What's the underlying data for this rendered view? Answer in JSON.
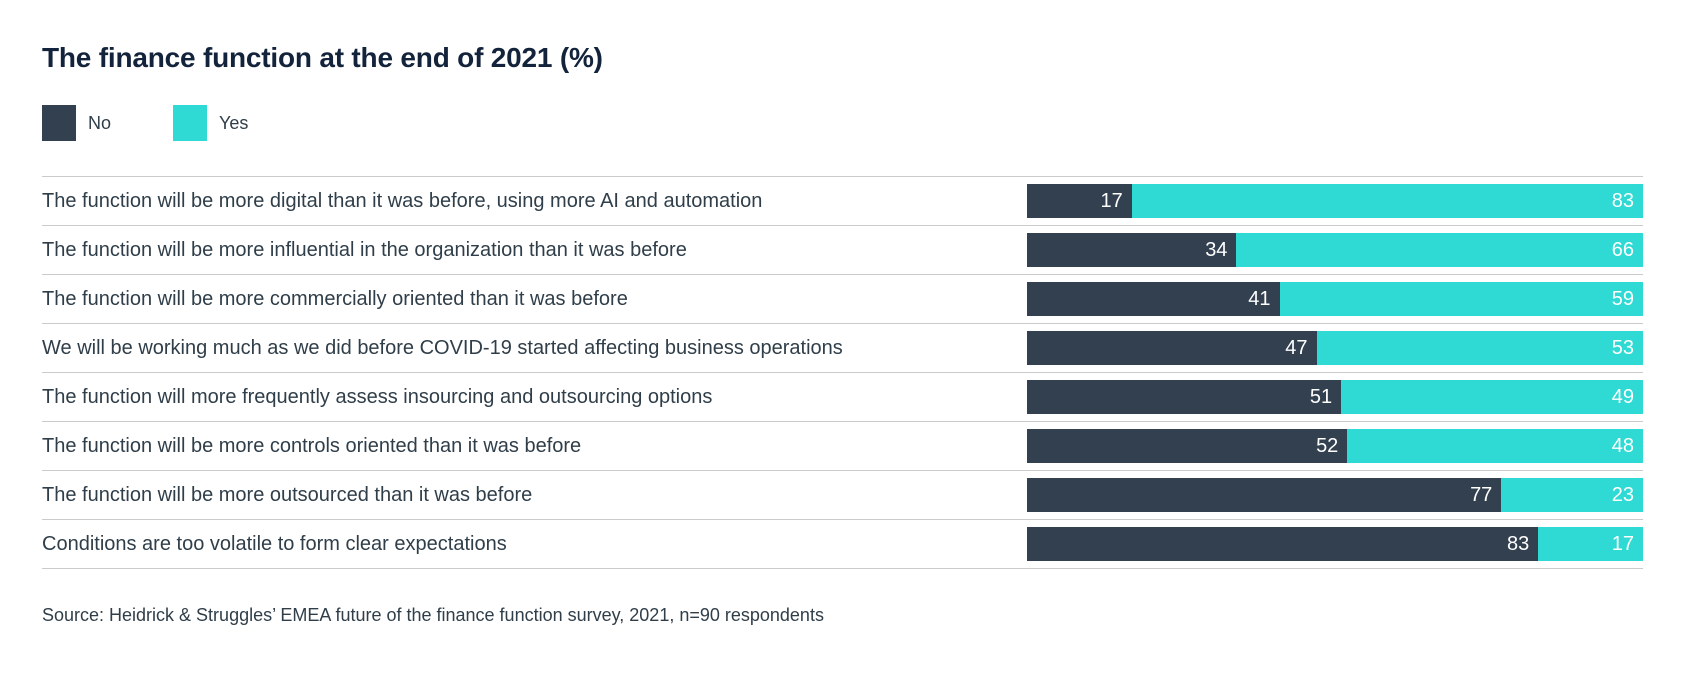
{
  "title": "The finance function at the end of 2021 (%)",
  "source_note": "Source: Heidrick & Struggles’ EMEA future of the finance function survey, 2021, n=90 respondents",
  "colors": {
    "no_bar": "#334050",
    "yes_bar": "#2edad3",
    "title_text": "#13233b",
    "body_text": "#2f3e49",
    "separator": "#cbcbcb",
    "background": "#ffffff",
    "value_label_text": "#ffffff"
  },
  "chart_data": {
    "type": "bar",
    "orientation": "horizontal-stacked",
    "title": "The finance function at the end of 2021 (%)",
    "unit": "%",
    "value_range": [
      0,
      100
    ],
    "legend_position": "top-left",
    "value_labels": "inside-right",
    "grid": "row-separators-only",
    "categories": [
      "The function will be more digital than it was before, using more AI and automation",
      "The function will be more influential in the organization than it was before",
      "The function will be more commercially oriented than it was before",
      "We will be working much as we did before COVID-19 started affecting business operations",
      "The function will more frequently assess insourcing and outsourcing options",
      "The function will be more controls oriented than it was before",
      "The function will be more outsourced than it was before",
      "Conditions are too volatile to form clear expectations"
    ],
    "series": [
      {
        "name": "No",
        "color": "#334050",
        "values": [
          17,
          34,
          41,
          47,
          51,
          52,
          77,
          83
        ]
      },
      {
        "name": "Yes",
        "color": "#2edad3",
        "values": [
          83,
          66,
          59,
          53,
          49,
          48,
          23,
          17
        ]
      }
    ]
  }
}
